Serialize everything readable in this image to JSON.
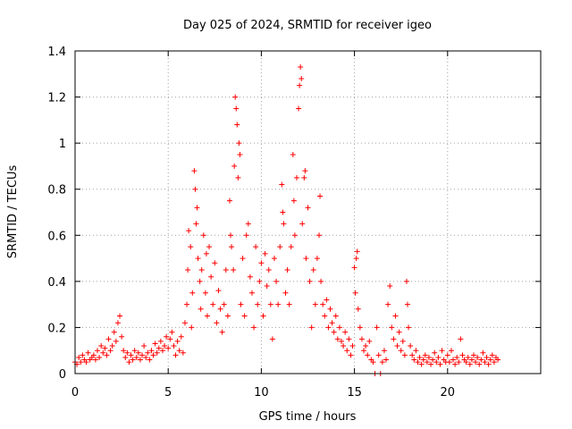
{
  "chart_data": {
    "type": "scatter",
    "title": "Day 025 of 2024, SRMTID for receiver igeo",
    "xlabel": "GPS time / hours",
    "ylabel": "SRMTID / TECUs",
    "xlim": [
      0,
      25
    ],
    "ylim": [
      0,
      1.4
    ],
    "xticks": [
      0,
      5,
      10,
      15,
      20
    ],
    "xtick_labels": [
      "0",
      "5",
      "10",
      "15",
      "20"
    ],
    "yticks": [
      0,
      0.2,
      0.4,
      0.6,
      0.8,
      1.0,
      1.2,
      1.4
    ],
    "ytick_labels": [
      "0",
      "0.2",
      "0.4",
      "0.6",
      "0.8",
      "1",
      "1.2",
      "1.4"
    ],
    "grid": true,
    "marker": "+",
    "color": "#ff0000",
    "series": [
      {
        "name": "SRMTID",
        "points": [
          [
            0.0,
            0.05
          ],
          [
            0.1,
            0.04
          ],
          [
            0.2,
            0.07
          ],
          [
            0.3,
            0.05
          ],
          [
            0.4,
            0.08
          ],
          [
            0.5,
            0.06
          ],
          [
            0.6,
            0.05
          ],
          [
            0.7,
            0.09
          ],
          [
            0.8,
            0.06
          ],
          [
            0.9,
            0.07
          ],
          [
            1.0,
            0.08
          ],
          [
            1.1,
            0.06
          ],
          [
            1.2,
            0.1
          ],
          [
            1.3,
            0.07
          ],
          [
            1.4,
            0.12
          ],
          [
            1.5,
            0.09
          ],
          [
            1.6,
            0.11
          ],
          [
            1.7,
            0.08
          ],
          [
            1.8,
            0.15
          ],
          [
            1.9,
            0.1
          ],
          [
            2.0,
            0.12
          ],
          [
            2.1,
            0.18
          ],
          [
            2.2,
            0.14
          ],
          [
            2.3,
            0.22
          ],
          [
            2.4,
            0.25
          ],
          [
            2.5,
            0.16
          ],
          [
            2.6,
            0.1
          ],
          [
            2.7,
            0.07
          ],
          [
            2.8,
            0.09
          ],
          [
            2.9,
            0.05
          ],
          [
            3.0,
            0.08
          ],
          [
            3.1,
            0.06
          ],
          [
            3.2,
            0.1
          ],
          [
            3.3,
            0.07
          ],
          [
            3.4,
            0.09
          ],
          [
            3.5,
            0.06
          ],
          [
            3.6,
            0.08
          ],
          [
            3.7,
            0.12
          ],
          [
            3.8,
            0.07
          ],
          [
            3.9,
            0.09
          ],
          [
            4.0,
            0.06
          ],
          [
            4.1,
            0.1
          ],
          [
            4.2,
            0.08
          ],
          [
            4.3,
            0.13
          ],
          [
            4.4,
            0.09
          ],
          [
            4.5,
            0.11
          ],
          [
            4.6,
            0.14
          ],
          [
            4.7,
            0.1
          ],
          [
            4.8,
            0.12
          ],
          [
            4.9,
            0.16
          ],
          [
            5.0,
            0.11
          ],
          [
            5.1,
            0.15
          ],
          [
            5.2,
            0.18
          ],
          [
            5.3,
            0.12
          ],
          [
            5.4,
            0.08
          ],
          [
            5.5,
            0.14
          ],
          [
            5.6,
            0.1
          ],
          [
            5.7,
            0.16
          ],
          [
            5.8,
            0.09
          ],
          [
            5.9,
            0.22
          ],
          [
            6.0,
            0.3
          ],
          [
            6.05,
            0.45
          ],
          [
            6.1,
            0.62
          ],
          [
            6.2,
            0.55
          ],
          [
            6.25,
            0.2
          ],
          [
            6.3,
            0.35
          ],
          [
            6.4,
            0.88
          ],
          [
            6.45,
            0.8
          ],
          [
            6.5,
            0.65
          ],
          [
            6.55,
            0.72
          ],
          [
            6.6,
            0.5
          ],
          [
            6.7,
            0.4
          ],
          [
            6.75,
            0.28
          ],
          [
            6.8,
            0.45
          ],
          [
            6.9,
            0.6
          ],
          [
            7.0,
            0.35
          ],
          [
            7.05,
            0.52
          ],
          [
            7.1,
            0.25
          ],
          [
            7.2,
            0.55
          ],
          [
            7.3,
            0.42
          ],
          [
            7.4,
            0.3
          ],
          [
            7.5,
            0.48
          ],
          [
            7.6,
            0.22
          ],
          [
            7.7,
            0.36
          ],
          [
            7.8,
            0.28
          ],
          [
            7.9,
            0.18
          ],
          [
            8.0,
            0.3
          ],
          [
            8.1,
            0.45
          ],
          [
            8.2,
            0.25
          ],
          [
            8.3,
            0.75
          ],
          [
            8.35,
            0.6
          ],
          [
            8.4,
            0.55
          ],
          [
            8.5,
            0.45
          ],
          [
            8.55,
            0.9
          ],
          [
            8.6,
            1.2
          ],
          [
            8.65,
            1.15
          ],
          [
            8.7,
            1.08
          ],
          [
            8.75,
            0.85
          ],
          [
            8.8,
            1.0
          ],
          [
            8.85,
            0.95
          ],
          [
            8.9,
            0.3
          ],
          [
            9.0,
            0.5
          ],
          [
            9.1,
            0.25
          ],
          [
            9.2,
            0.6
          ],
          [
            9.3,
            0.65
          ],
          [
            9.4,
            0.42
          ],
          [
            9.5,
            0.35
          ],
          [
            9.6,
            0.2
          ],
          [
            9.7,
            0.55
          ],
          [
            9.8,
            0.3
          ],
          [
            9.9,
            0.4
          ],
          [
            10.0,
            0.48
          ],
          [
            10.1,
            0.25
          ],
          [
            10.2,
            0.52
          ],
          [
            10.3,
            0.38
          ],
          [
            10.4,
            0.45
          ],
          [
            10.5,
            0.3
          ],
          [
            10.6,
            0.15
          ],
          [
            10.7,
            0.5
          ],
          [
            10.8,
            0.4
          ],
          [
            10.9,
            0.3
          ],
          [
            11.0,
            0.55
          ],
          [
            11.1,
            0.82
          ],
          [
            11.15,
            0.7
          ],
          [
            11.2,
            0.65
          ],
          [
            11.3,
            0.35
          ],
          [
            11.4,
            0.45
          ],
          [
            11.5,
            0.3
          ],
          [
            11.6,
            0.55
          ],
          [
            11.7,
            0.95
          ],
          [
            11.75,
            0.75
          ],
          [
            11.8,
            0.6
          ],
          [
            11.9,
            0.85
          ],
          [
            12.0,
            1.15
          ],
          [
            12.05,
            1.25
          ],
          [
            12.1,
            1.33
          ],
          [
            12.15,
            1.28
          ],
          [
            12.2,
            0.65
          ],
          [
            12.3,
            0.85
          ],
          [
            12.35,
            0.88
          ],
          [
            12.4,
            0.5
          ],
          [
            12.5,
            0.72
          ],
          [
            12.6,
            0.4
          ],
          [
            12.7,
            0.2
          ],
          [
            12.8,
            0.45
          ],
          [
            12.9,
            0.3
          ],
          [
            13.0,
            0.5
          ],
          [
            13.1,
            0.6
          ],
          [
            13.15,
            0.77
          ],
          [
            13.2,
            0.4
          ],
          [
            13.3,
            0.3
          ],
          [
            13.4,
            0.25
          ],
          [
            13.5,
            0.32
          ],
          [
            13.6,
            0.2
          ],
          [
            13.7,
            0.28
          ],
          [
            13.8,
            0.22
          ],
          [
            13.9,
            0.18
          ],
          [
            14.0,
            0.25
          ],
          [
            14.1,
            0.15
          ],
          [
            14.2,
            0.2
          ],
          [
            14.3,
            0.14
          ],
          [
            14.4,
            0.12
          ],
          [
            14.5,
            0.18
          ],
          [
            14.6,
            0.1
          ],
          [
            14.7,
            0.15
          ],
          [
            14.8,
            0.08
          ],
          [
            14.9,
            0.12
          ],
          [
            15.0,
            0.46
          ],
          [
            15.05,
            0.35
          ],
          [
            15.1,
            0.5
          ],
          [
            15.15,
            0.53
          ],
          [
            15.2,
            0.28
          ],
          [
            15.3,
            0.2
          ],
          [
            15.4,
            0.15
          ],
          [
            15.5,
            0.1
          ],
          [
            15.6,
            0.12
          ],
          [
            15.7,
            0.08
          ],
          [
            15.8,
            0.14
          ],
          [
            15.9,
            0.06
          ],
          [
            16.0,
            0.05
          ],
          [
            16.1,
            0.0
          ],
          [
            16.2,
            0.2
          ],
          [
            16.3,
            0.08
          ],
          [
            16.4,
            0.0
          ],
          [
            16.5,
            0.05
          ],
          [
            16.6,
            0.1
          ],
          [
            16.7,
            0.06
          ],
          [
            16.8,
            0.3
          ],
          [
            16.9,
            0.38
          ],
          [
            17.0,
            0.2
          ],
          [
            17.1,
            0.15
          ],
          [
            17.2,
            0.25
          ],
          [
            17.3,
            0.12
          ],
          [
            17.4,
            0.18
          ],
          [
            17.5,
            0.1
          ],
          [
            17.6,
            0.14
          ],
          [
            17.7,
            0.08
          ],
          [
            17.8,
            0.4
          ],
          [
            17.85,
            0.3
          ],
          [
            17.9,
            0.2
          ],
          [
            18.0,
            0.12
          ],
          [
            18.1,
            0.08
          ],
          [
            18.2,
            0.06
          ],
          [
            18.3,
            0.1
          ],
          [
            18.4,
            0.05
          ],
          [
            18.5,
            0.07
          ],
          [
            18.6,
            0.04
          ],
          [
            18.7,
            0.06
          ],
          [
            18.8,
            0.08
          ],
          [
            18.9,
            0.05
          ],
          [
            19.0,
            0.07
          ],
          [
            19.1,
            0.04
          ],
          [
            19.2,
            0.06
          ],
          [
            19.3,
            0.09
          ],
          [
            19.4,
            0.05
          ],
          [
            19.5,
            0.07
          ],
          [
            19.6,
            0.04
          ],
          [
            19.7,
            0.1
          ],
          [
            19.8,
            0.06
          ],
          [
            19.9,
            0.05
          ],
          [
            20.0,
            0.08
          ],
          [
            20.1,
            0.05
          ],
          [
            20.2,
            0.1
          ],
          [
            20.3,
            0.06
          ],
          [
            20.4,
            0.04
          ],
          [
            20.5,
            0.07
          ],
          [
            20.6,
            0.05
          ],
          [
            20.7,
            0.15
          ],
          [
            20.8,
            0.08
          ],
          [
            20.9,
            0.06
          ],
          [
            21.0,
            0.05
          ],
          [
            21.1,
            0.07
          ],
          [
            21.2,
            0.04
          ],
          [
            21.3,
            0.06
          ],
          [
            21.4,
            0.08
          ],
          [
            21.5,
            0.05
          ],
          [
            21.6,
            0.07
          ],
          [
            21.7,
            0.04
          ],
          [
            21.8,
            0.06
          ],
          [
            21.9,
            0.09
          ],
          [
            22.0,
            0.05
          ],
          [
            22.1,
            0.07
          ],
          [
            22.2,
            0.04
          ],
          [
            22.3,
            0.06
          ],
          [
            22.4,
            0.08
          ],
          [
            22.5,
            0.05
          ],
          [
            22.6,
            0.07
          ],
          [
            22.7,
            0.06
          ]
        ]
      }
    ]
  }
}
